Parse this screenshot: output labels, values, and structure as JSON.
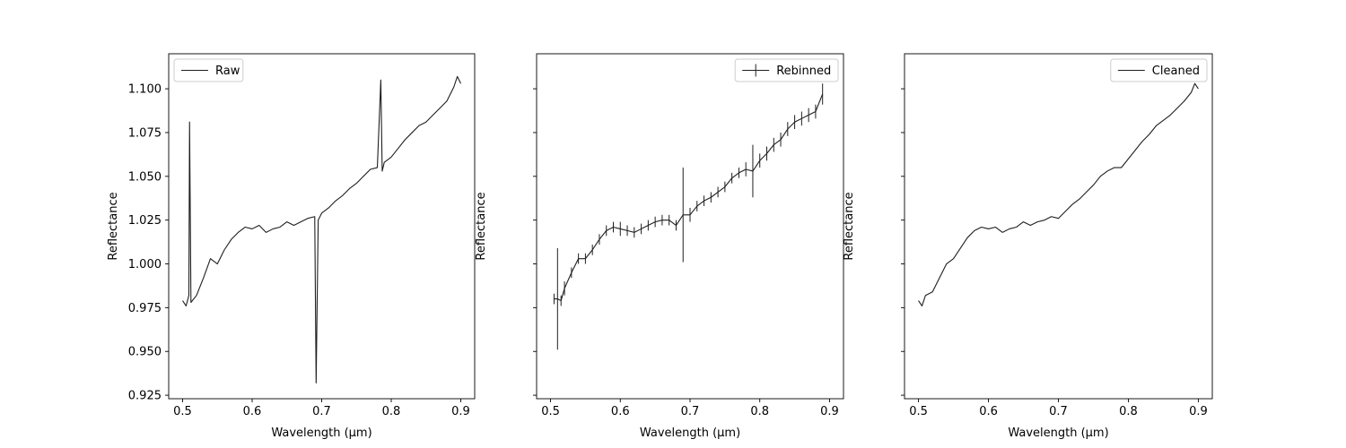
{
  "chart_data": [
    {
      "type": "line",
      "legend_label": "Raw",
      "legend_position": "upper-left",
      "xlabel": "Wavelength (μm)",
      "ylabel": "Reflectance",
      "xlim": [
        0.48,
        0.92
      ],
      "ylim": [
        0.923,
        1.12
      ],
      "x_ticks": [
        "0.5",
        "0.6",
        "0.7",
        "0.8",
        "0.9"
      ],
      "y_ticks": [
        "0.925",
        "0.950",
        "0.975",
        "1.000",
        "1.025",
        "1.050",
        "1.075",
        "1.100"
      ],
      "show_y_tick_labels": true,
      "series": [
        {
          "style": "line",
          "color": "#1f1f1f",
          "x": [
            0.5,
            0.505,
            0.509,
            0.51,
            0.512,
            0.52,
            0.53,
            0.54,
            0.55,
            0.56,
            0.57,
            0.58,
            0.59,
            0.6,
            0.61,
            0.62,
            0.63,
            0.64,
            0.65,
            0.66,
            0.67,
            0.68,
            0.69,
            0.692,
            0.695,
            0.7,
            0.71,
            0.72,
            0.73,
            0.74,
            0.75,
            0.76,
            0.77,
            0.78,
            0.785,
            0.787,
            0.79,
            0.8,
            0.81,
            0.82,
            0.83,
            0.84,
            0.85,
            0.86,
            0.87,
            0.88,
            0.89,
            0.895,
            0.9
          ],
          "y": [
            0.979,
            0.976,
            0.982,
            1.081,
            0.978,
            0.982,
            0.992,
            1.003,
            1.0,
            1.008,
            1.014,
            1.018,
            1.021,
            1.02,
            1.022,
            1.018,
            1.02,
            1.021,
            1.024,
            1.022,
            1.024,
            1.026,
            1.027,
            0.932,
            1.025,
            1.029,
            1.032,
            1.036,
            1.039,
            1.043,
            1.046,
            1.05,
            1.054,
            1.055,
            1.105,
            1.053,
            1.058,
            1.061,
            1.066,
            1.071,
            1.075,
            1.079,
            1.081,
            1.085,
            1.089,
            1.093,
            1.101,
            1.107,
            1.103
          ]
        }
      ]
    },
    {
      "type": "line",
      "legend_label": "Rebinned",
      "legend_position": "upper-right",
      "xlabel": "Wavelength (μm)",
      "ylabel": "Reflectance",
      "xlim": [
        0.48,
        0.92
      ],
      "ylim": [
        0.923,
        1.12
      ],
      "x_ticks": [
        "0.5",
        "0.6",
        "0.7",
        "0.8",
        "0.9"
      ],
      "y_ticks": [
        "0.925",
        "0.950",
        "0.975",
        "1.000",
        "1.025",
        "1.050",
        "1.075",
        "1.100"
      ],
      "show_y_tick_labels": false,
      "series": [
        {
          "style": "errorbar",
          "color": "#1f1f1f",
          "x": [
            0.505,
            0.51,
            0.515,
            0.52,
            0.53,
            0.54,
            0.55,
            0.56,
            0.57,
            0.58,
            0.59,
            0.6,
            0.61,
            0.62,
            0.63,
            0.64,
            0.65,
            0.66,
            0.67,
            0.68,
            0.69,
            0.7,
            0.71,
            0.72,
            0.73,
            0.74,
            0.75,
            0.76,
            0.77,
            0.78,
            0.79,
            0.8,
            0.81,
            0.82,
            0.83,
            0.84,
            0.85,
            0.86,
            0.87,
            0.88,
            0.89
          ],
          "y": [
            0.98,
            0.98,
            0.979,
            0.986,
            0.995,
            1.003,
            1.003,
            1.008,
            1.014,
            1.019,
            1.021,
            1.02,
            1.019,
            1.018,
            1.02,
            1.022,
            1.024,
            1.025,
            1.025,
            1.022,
            1.028,
            1.028,
            1.033,
            1.036,
            1.038,
            1.041,
            1.044,
            1.049,
            1.052,
            1.054,
            1.053,
            1.059,
            1.063,
            1.068,
            1.071,
            1.077,
            1.081,
            1.083,
            1.085,
            1.087,
            1.097
          ],
          "yerr": [
            0.003,
            0.029,
            0.003,
            0.004,
            0.003,
            0.003,
            0.003,
            0.003,
            0.003,
            0.003,
            0.003,
            0.004,
            0.003,
            0.003,
            0.003,
            0.003,
            0.003,
            0.003,
            0.003,
            0.003,
            0.027,
            0.004,
            0.003,
            0.003,
            0.003,
            0.003,
            0.003,
            0.003,
            0.003,
            0.004,
            0.015,
            0.004,
            0.004,
            0.004,
            0.004,
            0.004,
            0.004,
            0.004,
            0.004,
            0.004,
            0.006
          ]
        }
      ]
    },
    {
      "type": "line",
      "legend_label": "Cleaned",
      "legend_position": "upper-right",
      "xlabel": "Wavelength (μm)",
      "ylabel": "Reflectance",
      "xlim": [
        0.48,
        0.92
      ],
      "ylim": [
        0.923,
        1.12
      ],
      "x_ticks": [
        "0.5",
        "0.6",
        "0.7",
        "0.8",
        "0.9"
      ],
      "y_ticks": [
        "0.925",
        "0.950",
        "0.975",
        "1.000",
        "1.025",
        "1.050",
        "1.075",
        "1.100"
      ],
      "show_y_tick_labels": false,
      "series": [
        {
          "style": "line",
          "color": "#1f1f1f",
          "x": [
            0.5,
            0.505,
            0.51,
            0.52,
            0.53,
            0.54,
            0.55,
            0.56,
            0.57,
            0.58,
            0.59,
            0.6,
            0.61,
            0.62,
            0.63,
            0.64,
            0.65,
            0.66,
            0.67,
            0.68,
            0.69,
            0.7,
            0.71,
            0.72,
            0.73,
            0.74,
            0.75,
            0.76,
            0.77,
            0.78,
            0.79,
            0.8,
            0.81,
            0.82,
            0.83,
            0.84,
            0.85,
            0.86,
            0.87,
            0.88,
            0.89,
            0.895,
            0.9
          ],
          "y": [
            0.979,
            0.976,
            0.982,
            0.984,
            0.992,
            1.0,
            1.003,
            1.009,
            1.015,
            1.019,
            1.021,
            1.02,
            1.021,
            1.018,
            1.02,
            1.021,
            1.024,
            1.022,
            1.024,
            1.025,
            1.027,
            1.026,
            1.03,
            1.034,
            1.037,
            1.041,
            1.045,
            1.05,
            1.053,
            1.055,
            1.055,
            1.06,
            1.065,
            1.07,
            1.074,
            1.079,
            1.082,
            1.085,
            1.089,
            1.093,
            1.098,
            1.103,
            1.1
          ]
        }
      ]
    }
  ]
}
